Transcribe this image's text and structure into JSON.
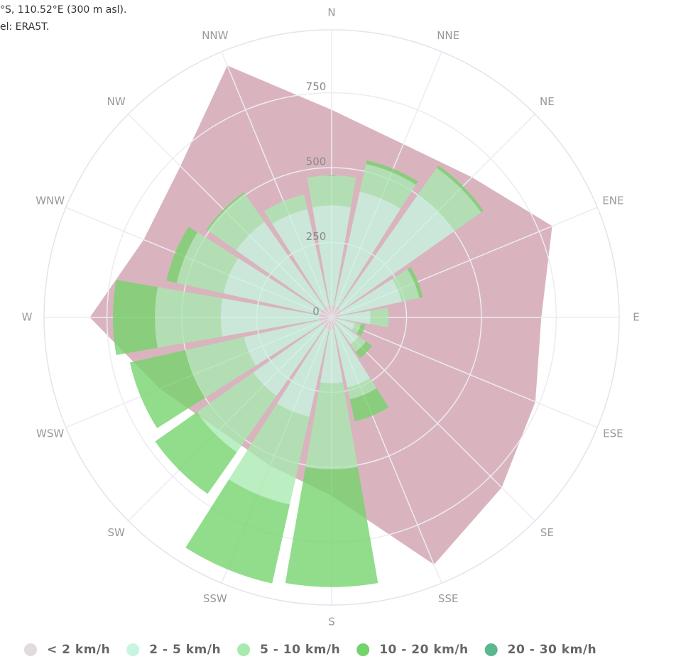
{
  "header": {
    "lines": [
      "°S, 110.52°E (300 m asl).",
      "el: ERA5T."
    ]
  },
  "chart_data": {
    "type": "windrose",
    "categories": [
      "N",
      "NNE",
      "NE",
      "ENE",
      "E",
      "ESE",
      "SE",
      "SSE",
      "S",
      "SSW",
      "SW",
      "WSW",
      "W",
      "WNW",
      "NW",
      "NNW"
    ],
    "series": [
      {
        "name": "< 2 km/h",
        "color": "#e2dade",
        "values": [
          40,
          40,
          40,
          30,
          25,
          20,
          20,
          30,
          40,
          40,
          40,
          40,
          40,
          40,
          40,
          40
        ]
      },
      {
        "name": "2 - 5 km/h",
        "color": "#c7f5e0",
        "values": [
          334,
          390,
          460,
          210,
          105,
          60,
          90,
          210,
          180,
          300,
          280,
          260,
          330,
          330,
          350,
          330
        ]
      },
      {
        "name": "5 - 10 km/h",
        "color": "#a8e9b0",
        "values": [
          100,
          95,
          110,
          60,
          60,
          20,
          30,
          40,
          287,
          300,
          230,
          200,
          220,
          160,
          115,
          50
        ]
      },
      {
        "name": "10 - 20 km/h",
        "color": "#72d36a",
        "values": [
          0,
          12,
          10,
          12,
          0,
          15,
          25,
          75,
          393,
          270,
          170,
          190,
          140,
          35,
          5,
          0
        ]
      },
      {
        "name": "20 - 30 km/h",
        "color": "#5ab891",
        "values": [
          0,
          0,
          0,
          0,
          0,
          0,
          0,
          0,
          0,
          0,
          0,
          0,
          0,
          0,
          0,
          0
        ]
      }
    ],
    "overlay": {
      "color": "#d9b4be",
      "values": [
        693,
        626,
        662,
        797,
        700,
        736,
        803,
        893,
        595,
        536,
        531,
        621,
        807,
        679,
        714,
        910
      ]
    },
    "rlim": [
      0,
      960
    ],
    "rticks": [
      0,
      250,
      500,
      750
    ]
  }
}
